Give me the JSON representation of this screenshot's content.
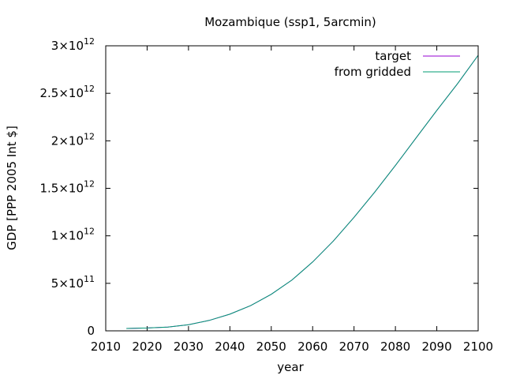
{
  "chart_data": {
    "type": "line",
    "title": "Mozambique (ssp1, 5arcmin)",
    "xlabel": "year",
    "ylabel": "GDP [PPP 2005 Int $]",
    "xlim": [
      2010,
      2100
    ],
    "ylim": [
      0,
      3000000000000
    ],
    "x_ticks": [
      2010,
      2020,
      2030,
      2040,
      2050,
      2060,
      2070,
      2080,
      2090,
      2100
    ],
    "y_ticks": [
      {
        "value": 0,
        "mantissa": "0",
        "exp": ""
      },
      {
        "value": 500000000000,
        "mantissa": "5×10",
        "exp": "11"
      },
      {
        "value": 1000000000000,
        "mantissa": "1×10",
        "exp": "12"
      },
      {
        "value": 1500000000000,
        "mantissa": "1.5×10",
        "exp": "12"
      },
      {
        "value": 2000000000000,
        "mantissa": "2×10",
        "exp": "12"
      },
      {
        "value": 2500000000000,
        "mantissa": "2.5×10",
        "exp": "12"
      },
      {
        "value": 3000000000000,
        "mantissa": "3×10",
        "exp": "12"
      }
    ],
    "grid": false,
    "legend_position": "top-right",
    "x": [
      2015,
      2020,
      2025,
      2030,
      2035,
      2040,
      2045,
      2050,
      2055,
      2060,
      2065,
      2070,
      2075,
      2080,
      2085,
      2090,
      2095,
      2100
    ],
    "series": [
      {
        "name": "target",
        "color": "#9400d3",
        "values": [
          25000000000,
          30000000000,
          40000000000,
          65000000000,
          110000000000,
          175000000000,
          265000000000,
          385000000000,
          535000000000,
          725000000000,
          945000000000,
          1195000000000,
          1460000000000,
          1740000000000,
          2030000000000,
          2320000000000,
          2600000000000,
          2900000000000
        ]
      },
      {
        "name": "from gridded",
        "color": "#009e73",
        "values": [
          25000000000,
          30000000000,
          40000000000,
          65000000000,
          110000000000,
          175000000000,
          265000000000,
          385000000000,
          535000000000,
          725000000000,
          945000000000,
          1195000000000,
          1460000000000,
          1740000000000,
          2030000000000,
          2320000000000,
          2600000000000,
          2900000000000
        ]
      }
    ]
  }
}
